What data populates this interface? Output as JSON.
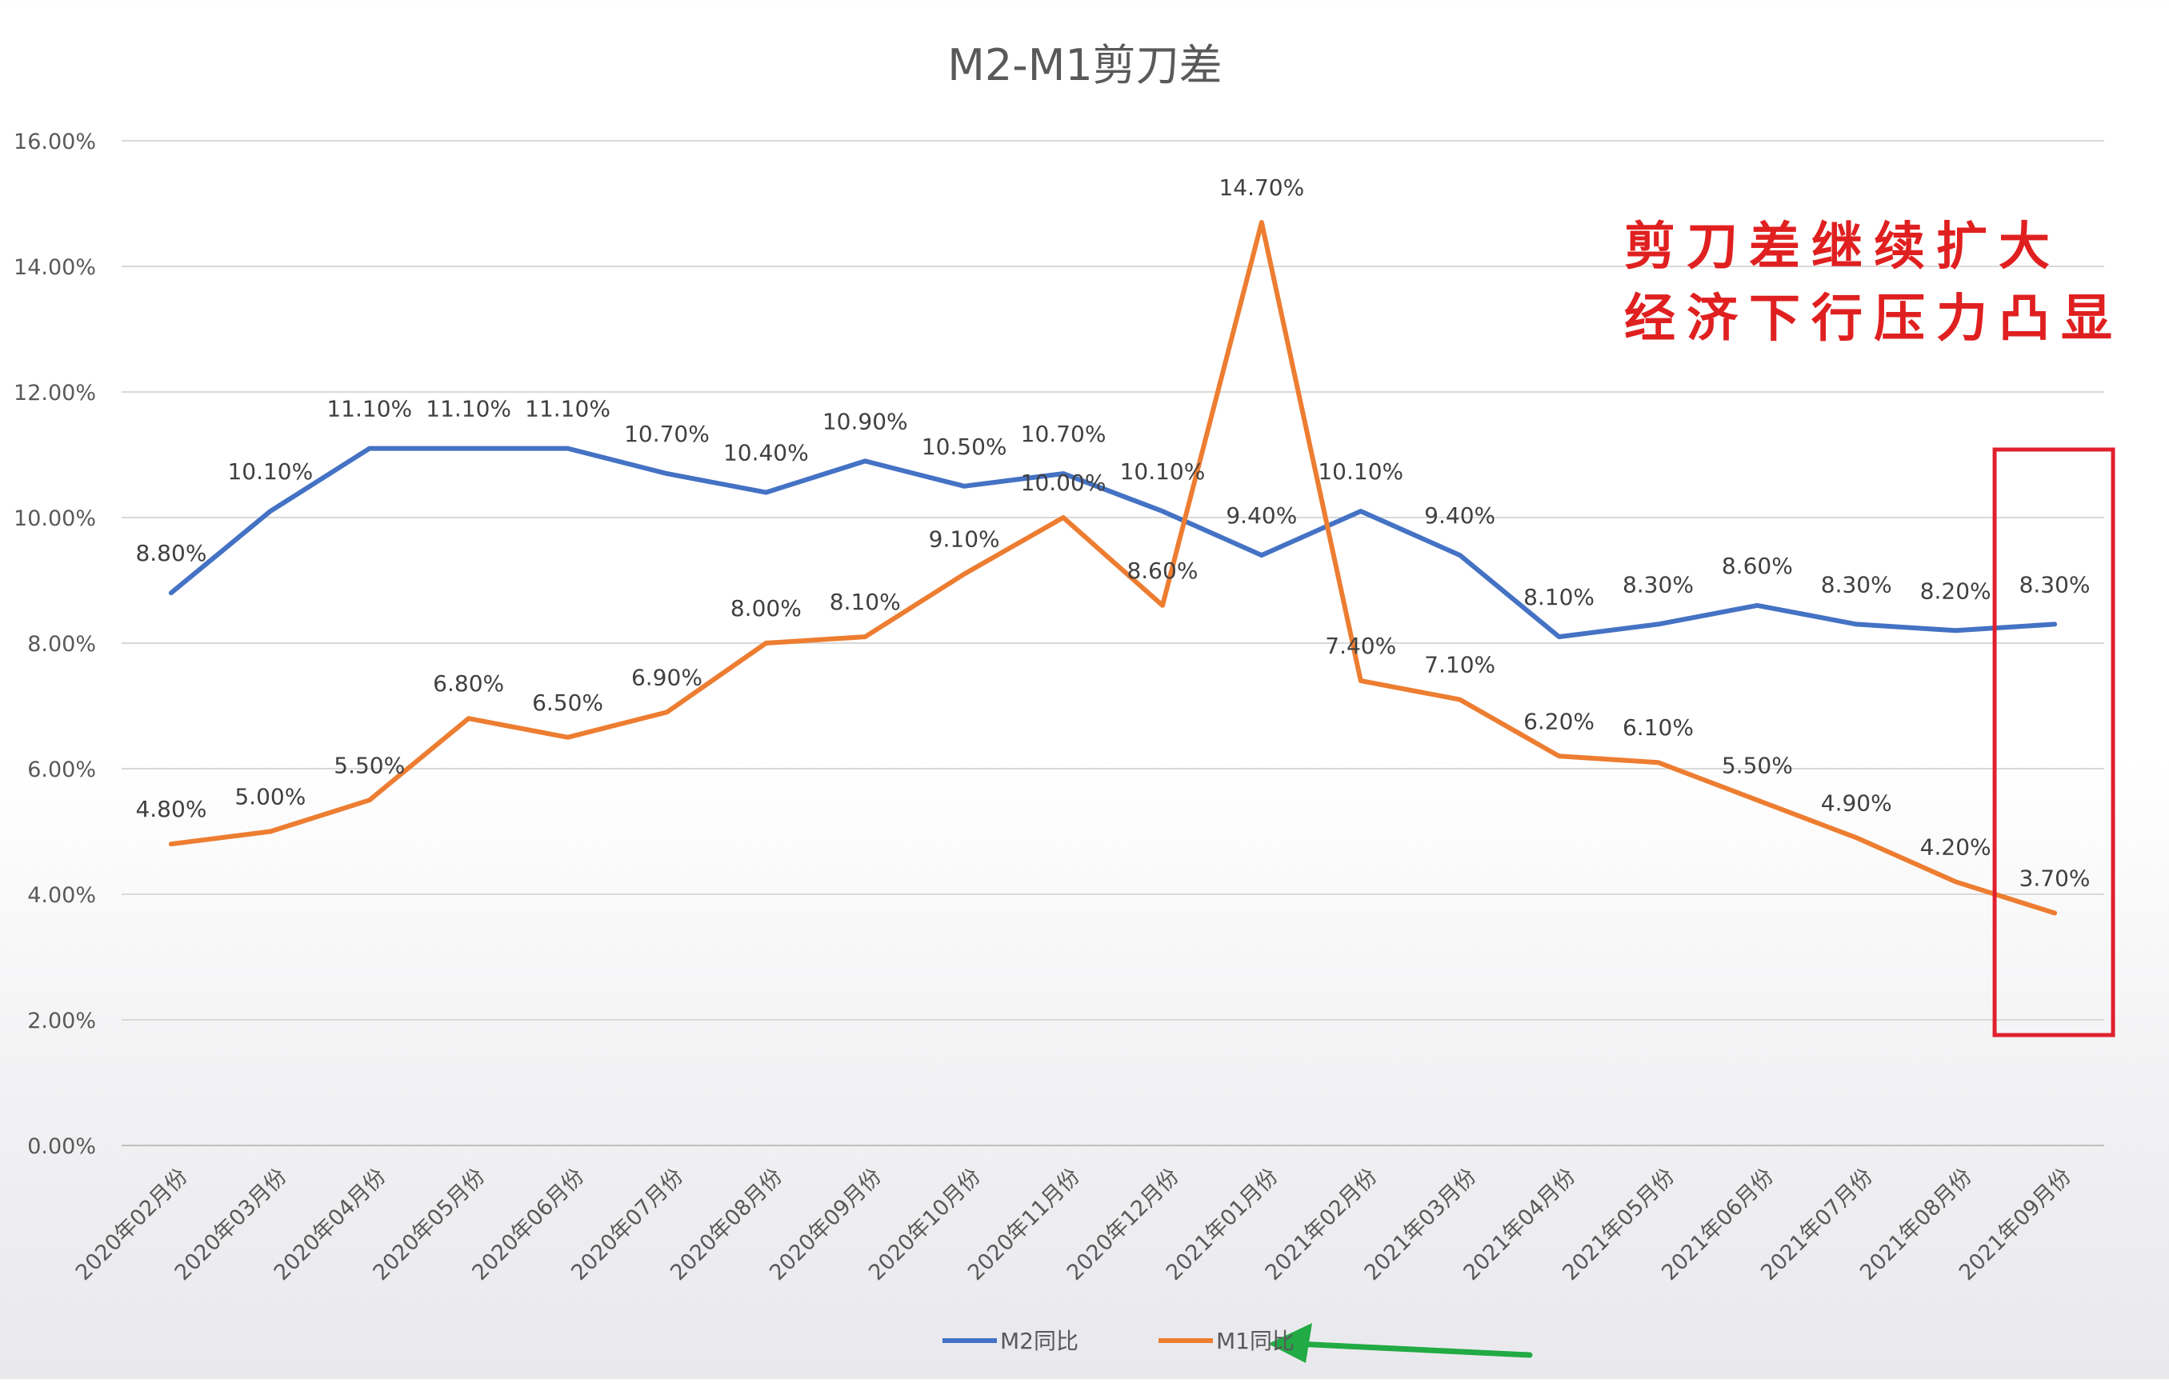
{
  "chart_data": {
    "type": "line",
    "title": "M2-M1剪刀差",
    "categories": [
      "2020年02月份",
      "2020年03月份",
      "2020年04月份",
      "2020年05月份",
      "2020年06月份",
      "2020年07月份",
      "2020年08月份",
      "2020年09月份",
      "2020年10月份",
      "2020年11月份",
      "2020年12月份",
      "2021年01月份",
      "2021年02月份",
      "2021年03月份",
      "2021年04月份",
      "2021年05月份",
      "2021年06月份",
      "2021年07月份",
      "2021年08月份",
      "2021年09月份"
    ],
    "series": [
      {
        "name": "M2同比",
        "color": "#4472c4",
        "values": [
          8.8,
          10.1,
          11.1,
          11.1,
          11.1,
          10.7,
          10.4,
          10.9,
          10.5,
          10.7,
          10.1,
          9.4,
          10.1,
          9.4,
          8.1,
          8.3,
          8.6,
          8.3,
          8.2,
          8.3
        ],
        "labels": [
          "8.80%",
          "10.10%",
          "11.10%",
          "11.10%",
          "11.10%",
          "10.70%",
          "10.40%",
          "10.90%",
          "10.50%",
          "10.70%",
          "10.10%",
          "9.40%",
          "10.10%",
          "9.40%",
          "8.10%",
          "8.30%",
          "8.60%",
          "8.30%",
          "8.20%",
          "8.30%"
        ]
      },
      {
        "name": "M1同比",
        "color": "#ed7d31",
        "values": [
          4.8,
          5.0,
          5.5,
          6.8,
          6.5,
          6.9,
          8.0,
          8.1,
          9.1,
          10.0,
          8.6,
          14.7,
          7.4,
          7.1,
          6.2,
          6.1,
          5.5,
          4.9,
          4.2,
          3.7
        ],
        "labels": [
          "4.80%",
          "5.00%",
          "5.50%",
          "6.80%",
          "6.50%",
          "6.90%",
          "8.00%",
          "8.10%",
          "9.10%",
          "10.00%",
          "8.60%",
          "14.70%",
          "7.40%",
          "7.10%",
          "6.20%",
          "6.10%",
          "5.50%",
          "4.90%",
          "4.20%",
          "3.70%"
        ]
      }
    ],
    "y_ticks": [
      "0.00%",
      "2.00%",
      "4.00%",
      "6.00%",
      "8.00%",
      "10.00%",
      "12.00%",
      "14.00%",
      "16.00%"
    ],
    "ylim": [
      0,
      16
    ],
    "grid": true,
    "legend_position": "bottom-center",
    "annotation": {
      "lines": [
        "剪刀差继续扩大",
        "经济下行压力凸显"
      ],
      "color": "#e02020",
      "highlight_box_color": "#e0202e",
      "highlighted_category": "2021年09月份"
    },
    "legend_arrow_color": "#22aa44"
  }
}
